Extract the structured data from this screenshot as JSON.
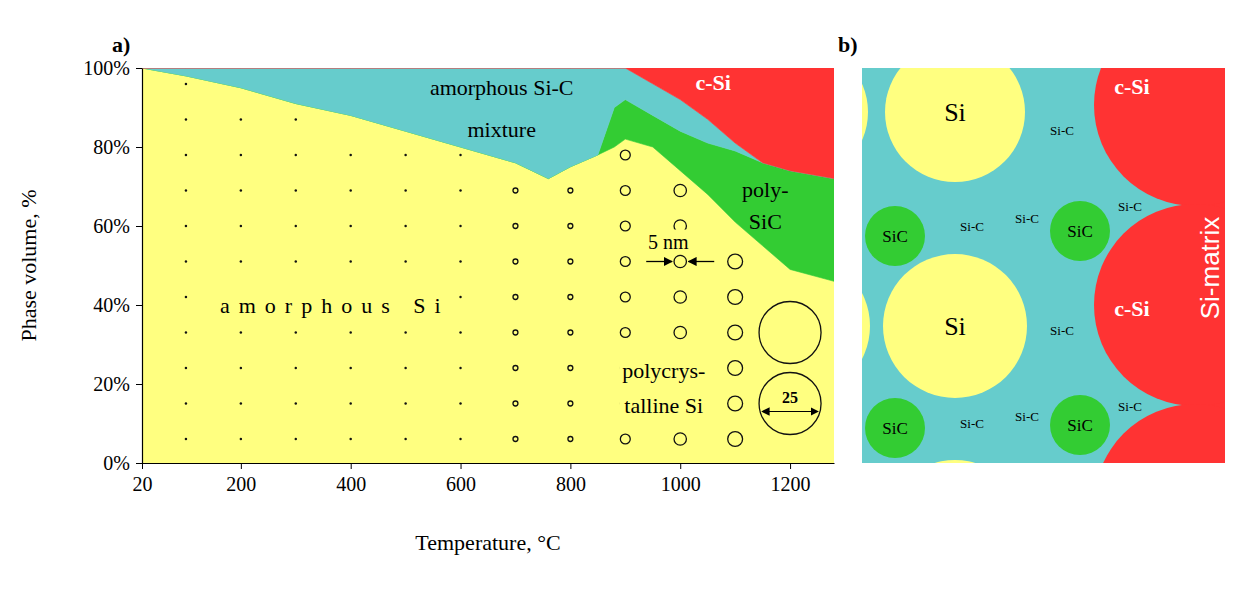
{
  "chart_data": {
    "type": "area",
    "stacked": true,
    "x_label": "Temperature, °C",
    "y_label": "Phase volume, %",
    "x": [
      20,
      100,
      200,
      300,
      400,
      500,
      600,
      700,
      760,
      800,
      850,
      880,
      900,
      950,
      1000,
      1050,
      1100,
      1150,
      1200,
      1280
    ],
    "series": [
      {
        "name": "amorphous Si",
        "color": "#ffff80",
        "values": [
          100,
          98,
          95,
          91,
          88,
          84,
          80,
          76,
          72,
          75,
          78,
          80,
          82,
          80,
          74,
          68,
          61,
          55,
          49,
          46
        ]
      },
      {
        "name": "poly-SiC",
        "color": "#33cc33",
        "values": [
          0,
          0,
          0,
          0,
          0,
          0,
          0,
          0,
          0,
          0,
          0,
          10,
          10,
          8,
          10,
          13,
          18,
          21,
          25,
          26
        ]
      },
      {
        "name": "amorphous Si-C mixture",
        "color": "#66cccc",
        "values": [
          0,
          2,
          5,
          9,
          12,
          16,
          20,
          24,
          28,
          25,
          22,
          10,
          8,
          8,
          8,
          6,
          2,
          0,
          0,
          0
        ]
      },
      {
        "name": "c-Si",
        "color": "#ff3333",
        "values": [
          0,
          0,
          0,
          0,
          0,
          0,
          0,
          0,
          0,
          0,
          0,
          0,
          0,
          4,
          8,
          13,
          19,
          24,
          26,
          28
        ]
      }
    ],
    "xlim": [
      20,
      1280
    ],
    "xticks": [
      20,
      200,
      400,
      600,
      800,
      1000,
      1200
    ],
    "ylim": [
      0,
      100
    ],
    "yticks": [
      {
        "value": 0,
        "label": "0%"
      },
      {
        "value": 20,
        "label": "20%"
      },
      {
        "value": 40,
        "label": "40%"
      },
      {
        "value": 60,
        "label": "60%"
      },
      {
        "value": 80,
        "label": "80%"
      },
      {
        "value": 100,
        "label": "100%"
      }
    ],
    "grains": {
      "x": [
        100,
        200,
        300,
        400,
        500,
        600,
        700,
        800,
        900,
        1000,
        1100,
        1200
      ],
      "size": [
        1,
        1,
        1,
        1,
        1,
        1,
        2,
        2,
        4,
        5,
        6,
        25
      ]
    },
    "annotations": [
      "polycrys-talline Si",
      "5 nm",
      "25",
      "a)"
    ]
  },
  "schematic": {
    "panel": "b)",
    "grain": "Si",
    "carbide": "SiC",
    "mixture": "Si-C",
    "crystal": "c-Si",
    "matrix": "Si-matrix"
  }
}
